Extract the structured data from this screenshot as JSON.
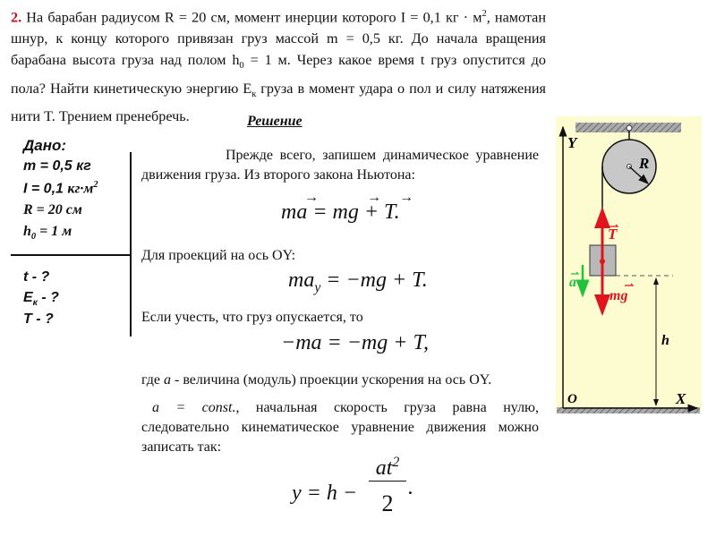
{
  "problem": {
    "number": "2.",
    "text_1": " На барабан радиусом R = 20 см, момент инерции которого I = 0,1 кг",
    "text_unit": " · м",
    "text_2": ", намотан шнур, к концу которого привязан груз массой m = 0,5 кг. До начала вращения барабана высота груза над полом h",
    "h_sub": "0",
    "text_3": "  = 1 м. Через какое время t груз опустится до пола? Найти кинетическую энергию E",
    "ek_sub": "к",
    "text_4": " груза в момент удара о пол и силу натяжения нити T. Трением пренебречь.",
    "number_color": "#c0161b"
  },
  "solution_title": "Решение",
  "given": {
    "header": "Дано:",
    "items": [
      "m = 0,5 кг",
      "I = 0,1 ",
      "кг·м",
      "R = 20 см",
      "h",
      "0",
      " = 1 м"
    ],
    "unknowns": [
      "t - ?",
      "E",
      "к",
      " - ?",
      "T - ?"
    ]
  },
  "solution": {
    "p1": "Прежде всего, запишем динамическое уравнение движения груза. Из второго закона Ньютона:",
    "eq1": "ma = mg + T.",
    "p2": "Для проекций на ось OY:",
    "eq2_a": "ma",
    "eq2_sub": "y",
    "eq2_b": " = −mg + T.",
    "p3": "Если учесть, что груз опускается, то",
    "eq3": "−ma = −mg + T,",
    "p4_a": "где ",
    "p4_var": "a",
    "p4_b": " -  величина (модуль) проекции ускорения на ось OY.",
    "p5_a": "a = const.",
    "p5_b": ",  начальная скорость груза равна нулю, следовательно кинематическое уравнение движения можно записать так:",
    "eq4_left": "y = h −",
    "eq4_num": "at",
    "eq4_den": "2",
    "eq4_end": "."
  },
  "diagram": {
    "labels": {
      "y_axis": "Y",
      "x_axis": "X",
      "origin": "O",
      "radius": "R",
      "tension": "T",
      "gravity": "mg",
      "accel": "a",
      "height": "h"
    },
    "colors": {
      "background": "#fdfbd0",
      "force": "#e0141e",
      "accel": "#22c33a",
      "drum": "#c8c8c8",
      "block": "#b8b8b8"
    }
  }
}
